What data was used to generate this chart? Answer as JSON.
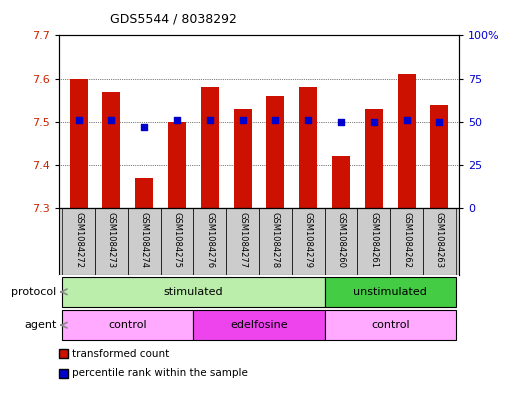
{
  "title": "GDS5544 / 8038292",
  "samples": [
    "GSM1084272",
    "GSM1084273",
    "GSM1084274",
    "GSM1084275",
    "GSM1084276",
    "GSM1084277",
    "GSM1084278",
    "GSM1084279",
    "GSM1084260",
    "GSM1084261",
    "GSM1084262",
    "GSM1084263"
  ],
  "transformed_count": [
    7.6,
    7.57,
    7.37,
    7.5,
    7.58,
    7.53,
    7.56,
    7.58,
    7.42,
    7.53,
    7.61,
    7.54
  ],
  "percentile_rank": [
    51,
    51,
    47,
    51,
    51,
    51,
    51,
    51,
    50,
    50,
    51,
    50
  ],
  "ylim_left": [
    7.3,
    7.7
  ],
  "ylim_right": [
    0,
    100
  ],
  "yticks_left": [
    7.3,
    7.4,
    7.5,
    7.6,
    7.7
  ],
  "yticks_right": [
    0,
    25,
    50,
    75,
    100
  ],
  "ytick_labels_right": [
    "0",
    "25",
    "50",
    "75",
    "100%"
  ],
  "bar_color": "#cc1100",
  "dot_color": "#0000cc",
  "bar_width": 0.55,
  "protocol_groups": [
    {
      "label": "stimulated",
      "start": 0,
      "end": 7,
      "color": "#bbeeaa"
    },
    {
      "label": "unstimulated",
      "start": 8,
      "end": 11,
      "color": "#44cc44"
    }
  ],
  "agent_groups": [
    {
      "label": "control",
      "start": 0,
      "end": 3,
      "color": "#ffaaff"
    },
    {
      "label": "edelfosine",
      "start": 4,
      "end": 7,
      "color": "#ee44ee"
    },
    {
      "label": "control",
      "start": 8,
      "end": 11,
      "color": "#ffaaff"
    }
  ],
  "legend_bar_label": "transformed count",
  "legend_dot_label": "percentile rank within the sample",
  "sample_cell_color": "#cccccc"
}
